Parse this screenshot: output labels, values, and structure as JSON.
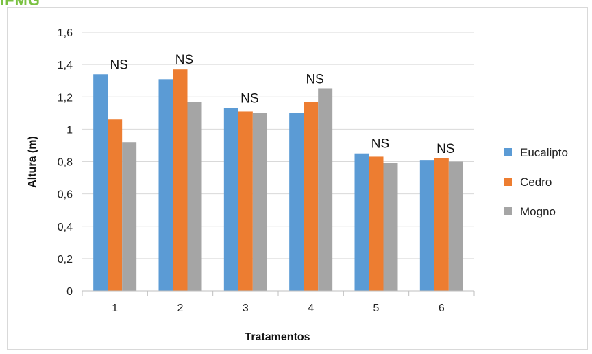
{
  "banner": {
    "logo_text": "IFMG"
  },
  "chart_data": {
    "type": "bar",
    "title": "",
    "xlabel": "Tratamentos",
    "ylabel": "Altura (m)",
    "categories": [
      "1",
      "2",
      "3",
      "4",
      "5",
      "6"
    ],
    "ylim": [
      0,
      1.6
    ],
    "yticks": [
      "0",
      "0,2",
      "0,4",
      "0,6",
      "0,8",
      "1",
      "1,2",
      "1,4",
      "1,6"
    ],
    "grid": true,
    "legend_position": "right",
    "series": [
      {
        "name": "Eucalipto",
        "color": "#5b9bd5",
        "values": [
          1.34,
          1.31,
          1.13,
          1.1,
          0.85,
          0.81
        ]
      },
      {
        "name": "Cedro",
        "color": "#ed7d31",
        "values": [
          1.06,
          1.37,
          1.11,
          1.17,
          0.83,
          0.82
        ]
      },
      {
        "name": "Mogno",
        "color": "#a5a5a5",
        "values": [
          0.92,
          1.17,
          1.1,
          1.25,
          0.79,
          0.8
        ]
      }
    ],
    "annotations": [
      "NS",
      "NS",
      "NS",
      "NS",
      "NS",
      "NS"
    ]
  }
}
